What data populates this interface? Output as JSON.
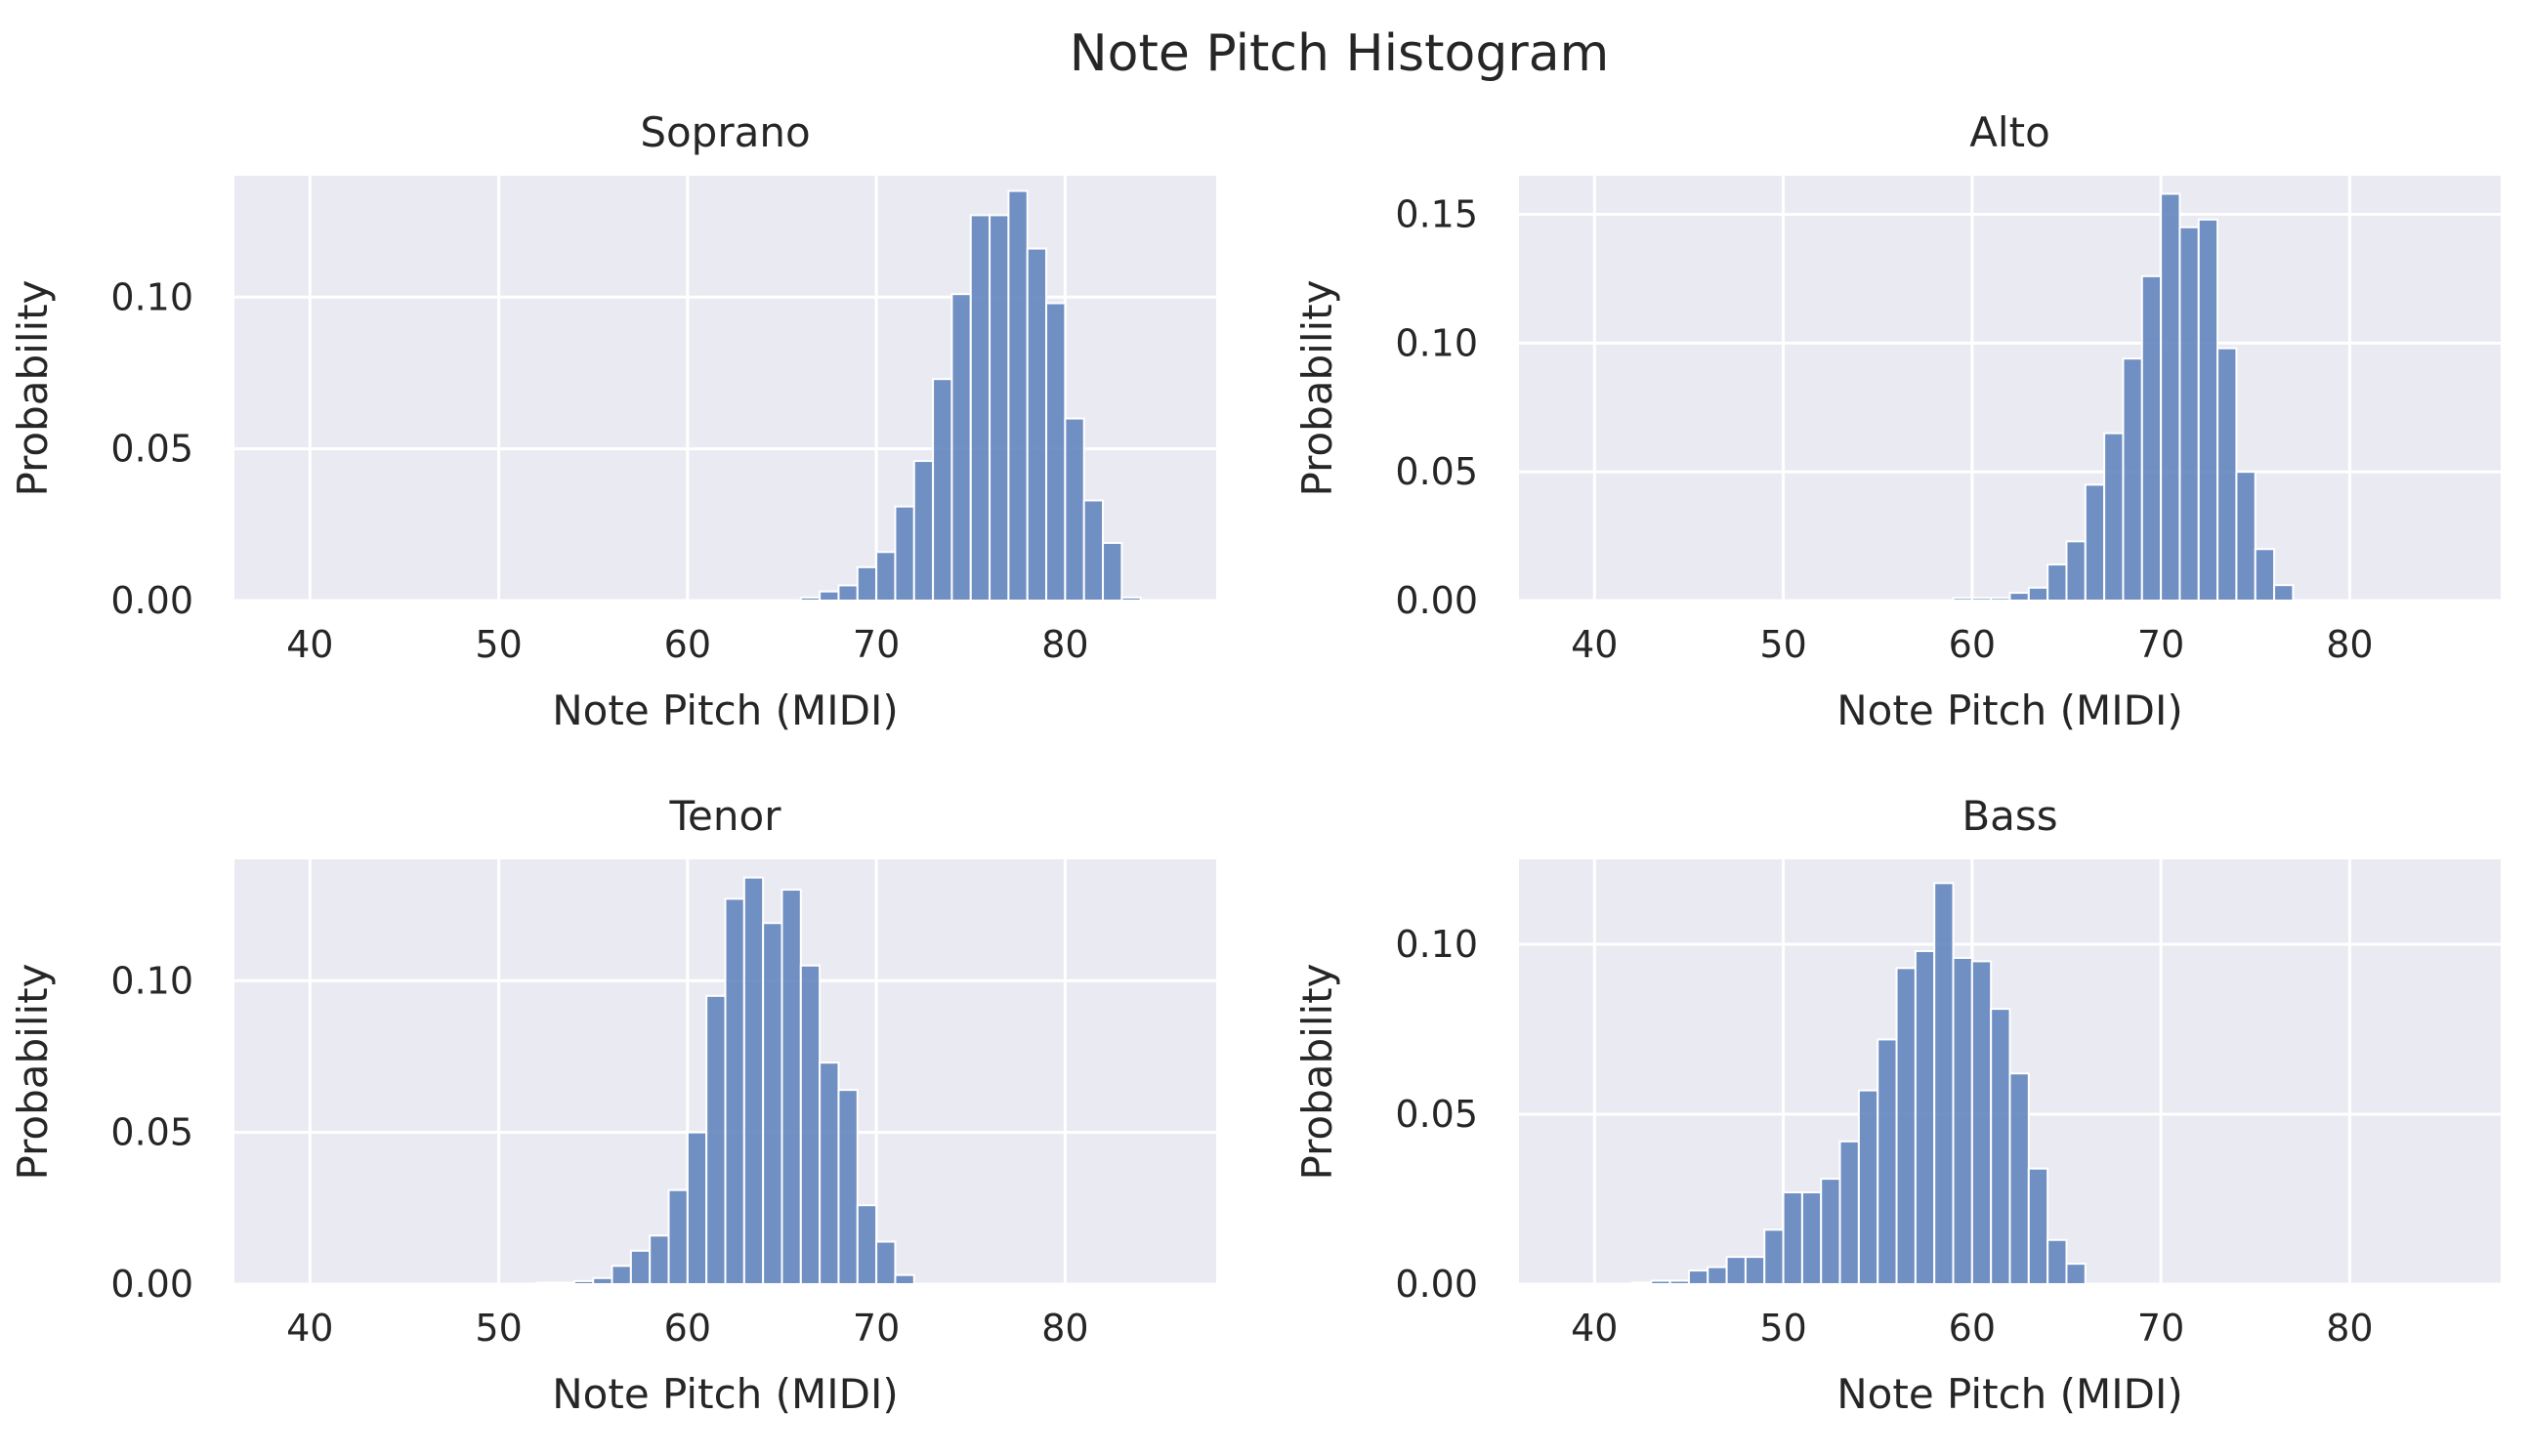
{
  "figure": {
    "title": "Note Pitch Histogram",
    "colors": {
      "bar": "#5b7fba",
      "panel_bg": "#eaeaf2",
      "grid": "#ffffff",
      "text": "#262626"
    }
  },
  "chart_data": [
    {
      "type": "bar",
      "title": "Soprano",
      "xlabel": "Note Pitch (MIDI)",
      "ylabel": "Probability",
      "xlim": [
        36,
        88
      ],
      "ylim": [
        0,
        0.14
      ],
      "xticks": [
        40,
        50,
        60,
        70,
        80
      ],
      "yticks": [
        0.0,
        0.05,
        0.1
      ],
      "ytick_labels": [
        "0.00",
        "0.05",
        "0.10"
      ],
      "grid": true,
      "bin_width": 1,
      "bins": [
        [
          66,
          0.001
        ],
        [
          67,
          0.003
        ],
        [
          68,
          0.005
        ],
        [
          69,
          0.011
        ],
        [
          70,
          0.016
        ],
        [
          71,
          0.031
        ],
        [
          72,
          0.046
        ],
        [
          73,
          0.073
        ],
        [
          74,
          0.101
        ],
        [
          75,
          0.127
        ],
        [
          76,
          0.127
        ],
        [
          77,
          0.135
        ],
        [
          78,
          0.116
        ],
        [
          79,
          0.098
        ],
        [
          80,
          0.06
        ],
        [
          81,
          0.033
        ],
        [
          82,
          0.019
        ],
        [
          83,
          0.001
        ]
      ]
    },
    {
      "type": "bar",
      "title": "Alto",
      "xlabel": "Note Pitch (MIDI)",
      "ylabel": "Probability",
      "xlim": [
        36,
        88
      ],
      "ylim": [
        0,
        0.165
      ],
      "xticks": [
        40,
        50,
        60,
        70,
        80
      ],
      "yticks": [
        0.0,
        0.05,
        0.1,
        0.15
      ],
      "ytick_labels": [
        "0.00",
        "0.05",
        "0.10",
        "0.15"
      ],
      "grid": true,
      "bin_width": 1,
      "bins": [
        [
          59,
          0.001
        ],
        [
          60,
          0.001
        ],
        [
          61,
          0.001
        ],
        [
          62,
          0.003
        ],
        [
          63,
          0.005
        ],
        [
          64,
          0.014
        ],
        [
          65,
          0.023
        ],
        [
          66,
          0.045
        ],
        [
          67,
          0.065
        ],
        [
          68,
          0.094
        ],
        [
          69,
          0.126
        ],
        [
          70,
          0.158
        ],
        [
          71,
          0.145
        ],
        [
          72,
          0.148
        ],
        [
          73,
          0.098
        ],
        [
          74,
          0.05
        ],
        [
          75,
          0.02
        ],
        [
          76,
          0.006
        ]
      ]
    },
    {
      "type": "bar",
      "title": "Tenor",
      "xlabel": "Note Pitch (MIDI)",
      "ylabel": "Probability",
      "xlim": [
        36,
        88
      ],
      "ylim": [
        0,
        0.14
      ],
      "xticks": [
        40,
        50,
        60,
        70,
        80
      ],
      "yticks": [
        0.0,
        0.05,
        0.1
      ],
      "ytick_labels": [
        "0.00",
        "0.05",
        "0.10"
      ],
      "grid": true,
      "bin_width": 1,
      "bins": [
        [
          52,
          0.0005
        ],
        [
          53,
          0.0005
        ],
        [
          54,
          0.001
        ],
        [
          55,
          0.002
        ],
        [
          56,
          0.006
        ],
        [
          57,
          0.011
        ],
        [
          58,
          0.016
        ],
        [
          59,
          0.031
        ],
        [
          60,
          0.05
        ],
        [
          61,
          0.095
        ],
        [
          62,
          0.127
        ],
        [
          63,
          0.134
        ],
        [
          64,
          0.119
        ],
        [
          65,
          0.13
        ],
        [
          66,
          0.105
        ],
        [
          67,
          0.073
        ],
        [
          68,
          0.064
        ],
        [
          69,
          0.026
        ],
        [
          70,
          0.014
        ],
        [
          71,
          0.003
        ]
      ]
    },
    {
      "type": "bar",
      "title": "Bass",
      "xlabel": "Note Pitch (MIDI)",
      "ylabel": "Probability",
      "xlim": [
        36,
        88
      ],
      "ylim": [
        0,
        0.125
      ],
      "xticks": [
        40,
        50,
        60,
        70,
        80
      ],
      "yticks": [
        0.0,
        0.05,
        0.1
      ],
      "ytick_labels": [
        "0.00",
        "0.05",
        "0.10"
      ],
      "grid": true,
      "bin_width": 1,
      "bins": [
        [
          42,
          0.0005
        ],
        [
          43,
          0.001
        ],
        [
          44,
          0.001
        ],
        [
          45,
          0.004
        ],
        [
          46,
          0.005
        ],
        [
          47,
          0.008
        ],
        [
          48,
          0.008
        ],
        [
          49,
          0.016
        ],
        [
          50,
          0.027
        ],
        [
          51,
          0.027
        ],
        [
          52,
          0.031
        ],
        [
          53,
          0.042
        ],
        [
          54,
          0.057
        ],
        [
          55,
          0.072
        ],
        [
          56,
          0.093
        ],
        [
          57,
          0.098
        ],
        [
          58,
          0.118
        ],
        [
          59,
          0.096
        ],
        [
          60,
          0.095
        ],
        [
          61,
          0.081
        ],
        [
          62,
          0.062
        ],
        [
          63,
          0.034
        ],
        [
          64,
          0.013
        ],
        [
          65,
          0.006
        ]
      ]
    }
  ]
}
